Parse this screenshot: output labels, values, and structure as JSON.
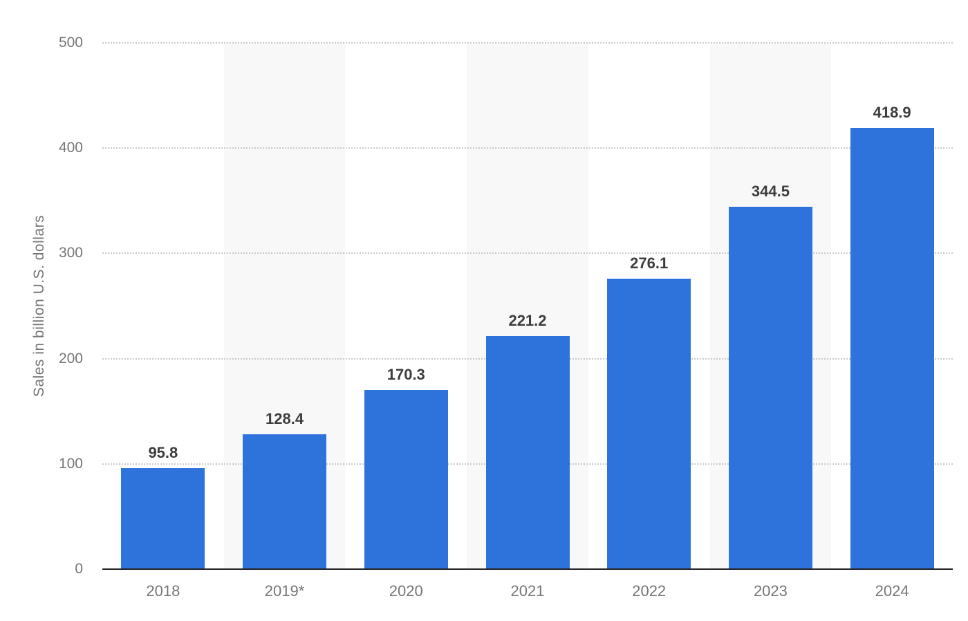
{
  "chart_data": {
    "type": "bar",
    "title": "",
    "categories": [
      "2018",
      "2019*",
      "2020",
      "2021",
      "2022",
      "2023",
      "2024"
    ],
    "values": [
      95.8,
      128.4,
      170.3,
      221.2,
      276.1,
      344.5,
      418.9
    ],
    "value_labels": [
      "95.8",
      "128.4",
      "170.3",
      "221.2",
      "276.1",
      "344.5",
      "418.9"
    ],
    "xlabel": "",
    "ylabel": "Sales in billion U.S. dollars",
    "ylim": [
      0,
      500
    ],
    "yticks": [
      "0",
      "100",
      "200",
      "300",
      "400",
      "500"
    ],
    "grid": "horizontal-dotted",
    "legend": "none",
    "striped_columns": [
      1,
      3,
      5
    ],
    "colors": {
      "bar": "#2e73dc",
      "column_stripe": "#f8f8f8",
      "gridline": "#c9c9c9",
      "axis_line": "#222222",
      "tick_label": "#757575",
      "value_label": "#3d3d3d",
      "background": "#ffffff"
    }
  }
}
